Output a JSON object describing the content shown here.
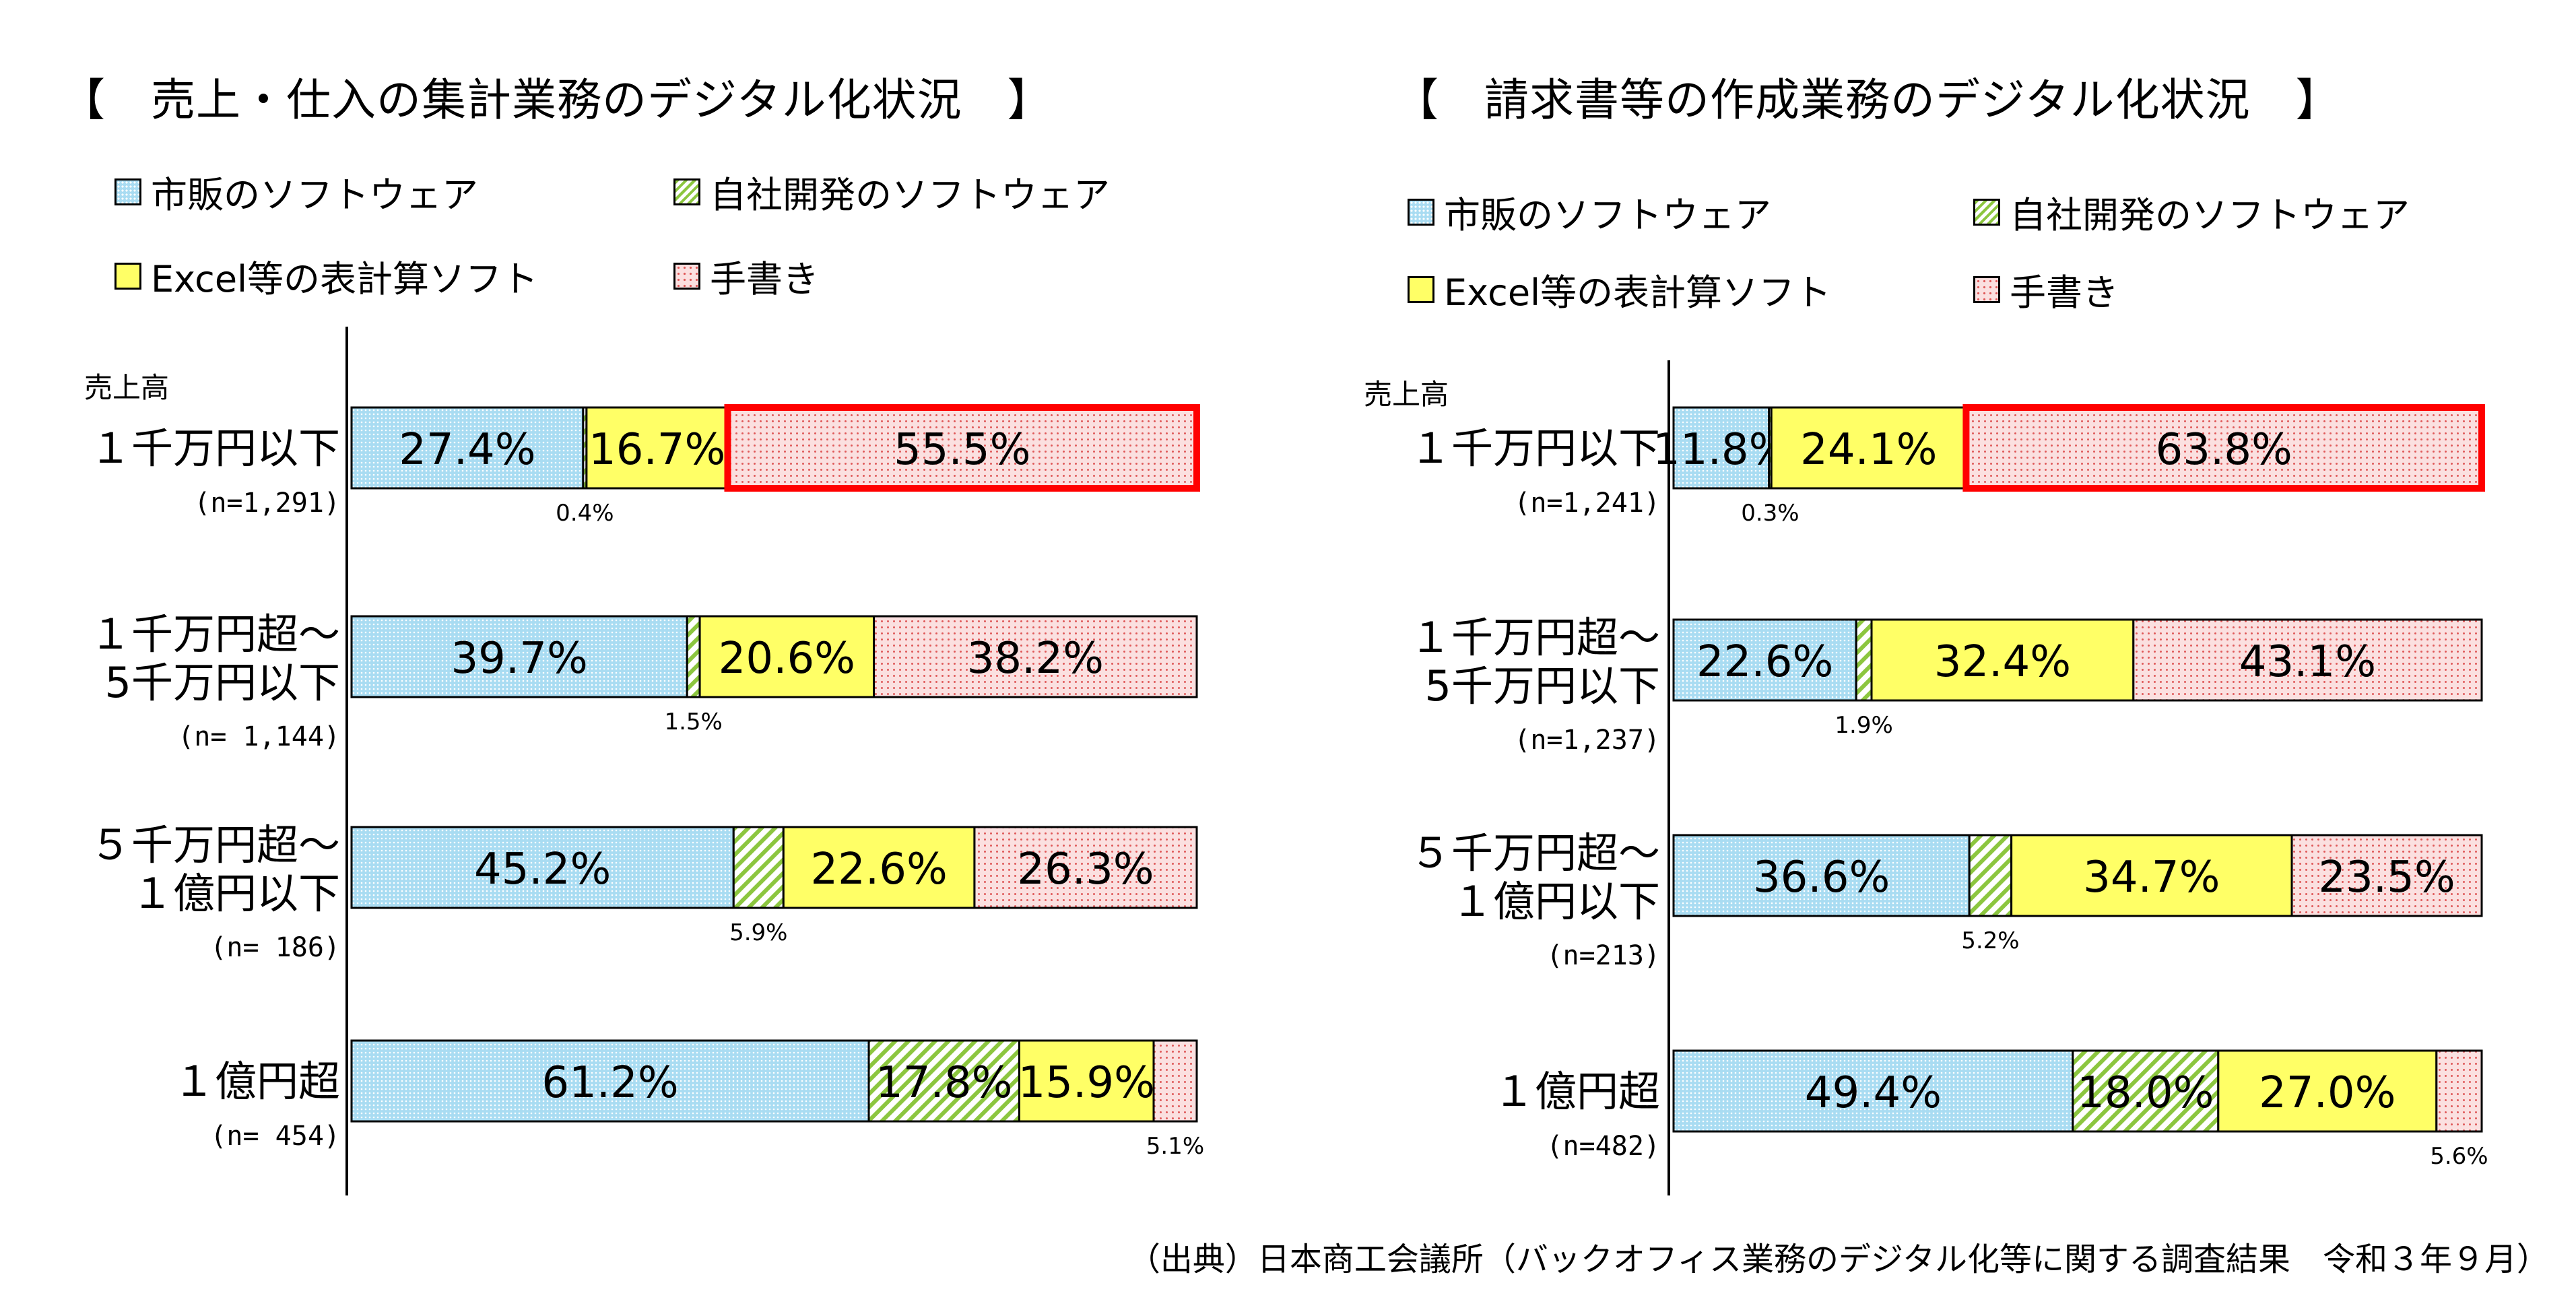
{
  "source": "（出典）日本商工会議所（バックオフィス業務のデジタル化等に関する調査結果　令和３年９月）",
  "colors": {
    "market_software": "#a9dcf2",
    "inhouse_software": "#8cc63f",
    "excel": "#ffff66",
    "handwriting": "#fbe0e0",
    "highlight": "#ff0000"
  },
  "chart_data": [
    {
      "type": "bar",
      "orientation": "horizontal-stacked-100",
      "title": "【　売上・仕入の集計業務のデジタル化状況　】",
      "axis_caption": "売上高",
      "series": [
        {
          "name": "市販のソフトウェア",
          "values": [
            27.4,
            39.7,
            45.2,
            61.2
          ]
        },
        {
          "name": "自社開発のソフトウェア",
          "values": [
            0.4,
            1.5,
            5.9,
            17.8
          ]
        },
        {
          "name": "Excel等の表計算ソフト",
          "values": [
            16.7,
            20.6,
            22.6,
            15.9
          ]
        },
        {
          "name": "手書き",
          "values": [
            55.5,
            38.2,
            26.3,
            5.1
          ]
        }
      ],
      "categories": [
        {
          "label": [
            "１千万円以下"
          ],
          "n": "(n=1,291)"
        },
        {
          "label": [
            "１千万円超～",
            "5千万円以下"
          ],
          "n": "(n= 1,144)"
        },
        {
          "label": [
            "５千万円超～",
            "１億円以下"
          ],
          "n": "(n= 186)"
        },
        {
          "label": [
            "１億円超"
          ],
          "n": "(n= 454)"
        }
      ],
      "highlighted": [
        [
          0,
          3
        ]
      ]
    },
    {
      "type": "bar",
      "orientation": "horizontal-stacked-100",
      "title": "【　請求書等の作成業務のデジタル化状況　】",
      "axis_caption": "売上高",
      "series": [
        {
          "name": "市販のソフトウェア",
          "values": [
            11.8,
            22.6,
            36.6,
            49.4
          ]
        },
        {
          "name": "自社開発のソフトウェア",
          "values": [
            0.3,
            1.9,
            5.2,
            18.0
          ]
        },
        {
          "name": "Excel等の表計算ソフト",
          "values": [
            24.1,
            32.4,
            34.7,
            27.0
          ]
        },
        {
          "name": "手書き",
          "values": [
            63.8,
            43.1,
            23.5,
            5.6
          ]
        }
      ],
      "categories": [
        {
          "label": [
            "１千万円以下"
          ],
          "n": "(n=1,241)"
        },
        {
          "label": [
            "１千万円超～",
            "5千万円以下"
          ],
          "n": "(n=1,237)"
        },
        {
          "label": [
            "５千万円超～",
            "１億円以下"
          ],
          "n": "(n=213)"
        },
        {
          "label": [
            "１億円超"
          ],
          "n": "(n=482)"
        }
      ],
      "highlighted": [
        [
          0,
          3
        ]
      ]
    }
  ]
}
